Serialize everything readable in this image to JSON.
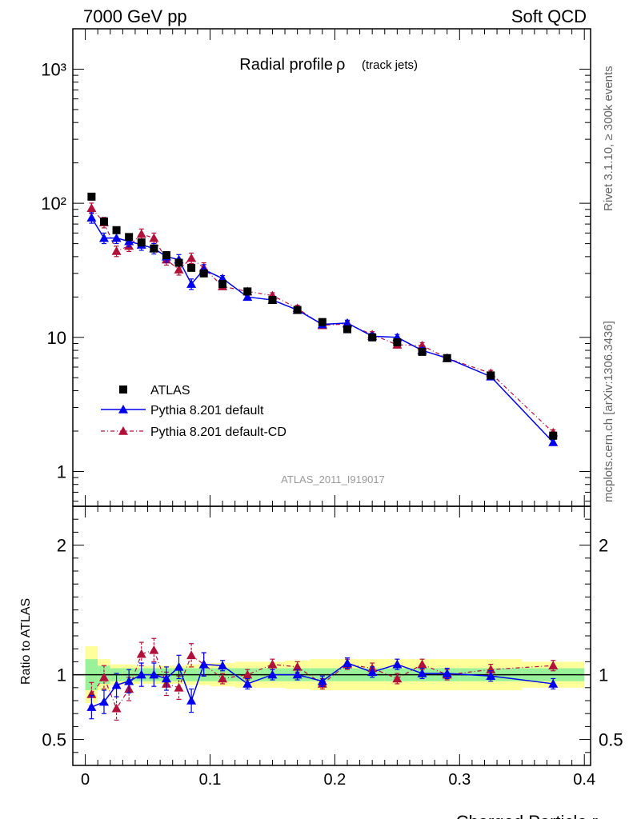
{
  "header": {
    "left": "7000 GeV pp",
    "right": "Soft QCD"
  },
  "side_text": {
    "rivet": "Rivet 3.1.10, ≥ 300k events",
    "mcplots": "mcplots.cern.ch [arXiv:1306.3436]"
  },
  "analysis_id": "ATLAS_2011_I919017",
  "colors": {
    "data": "#000000",
    "default": "#0000ee",
    "default_cd": "#b0103a",
    "band_green": "#99f299",
    "band_yellow": "#ffff99"
  },
  "chart_data": [
    {
      "type": "scatter",
      "title": "Radial profile ρ (track jets)",
      "title_main": "Radial profile",
      "title_symbol": "ρ",
      "title_sub": "(track jets)",
      "xlabel": "Charged Particle r",
      "ylabel": "",
      "yscale": "log",
      "xlim": [
        -0.01,
        0.405
      ],
      "ylim": [
        0.55,
        2000
      ],
      "y_tick_labels": [
        "1",
        "10",
        "10²",
        "10³"
      ],
      "legend": {
        "placement": "middle-left",
        "entries": [
          "ATLAS",
          "Pythia 8.201 default",
          "Pythia 8.201 default-CD"
        ]
      },
      "x": [
        0.005,
        0.015,
        0.025,
        0.035,
        0.045,
        0.055,
        0.065,
        0.075,
        0.085,
        0.095,
        0.11,
        0.13,
        0.15,
        0.17,
        0.19,
        0.21,
        0.23,
        0.25,
        0.27,
        0.29,
        0.325,
        0.375
      ],
      "series": [
        {
          "name": "ATLAS",
          "marker": "square",
          "values": [
            112,
            73,
            63,
            56,
            51,
            46,
            41,
            36,
            33,
            30,
            25,
            22,
            19,
            16,
            13,
            11.5,
            10,
            9.2,
            7.8,
            7.0,
            5.2,
            1.85
          ]
        },
        {
          "name": "Pythia 8.201 default",
          "marker": "triangle",
          "values": [
            78,
            55,
            55,
            52,
            49,
            46,
            40,
            38,
            25,
            32,
            27.5,
            20,
            19,
            16,
            12.5,
            12.8,
            10.2,
            10,
            8,
            7,
            5.1,
            1.65
          ]
        },
        {
          "name": "Pythia 8.201 default-CD",
          "marker": "triangle",
          "values": [
            92,
            72,
            44,
            48,
            59,
            55,
            38,
            32,
            39,
            33,
            24,
            22,
            20.5,
            16.5,
            12.3,
            12.6,
            10.5,
            8.8,
            8.7,
            7.0,
            5.4,
            1.95
          ]
        }
      ]
    },
    {
      "type": "scatter",
      "title": "",
      "xlabel": "Charged Particle r",
      "ylabel": "Ratio to ATLAS",
      "xlim": [
        -0.01,
        0.405
      ],
      "ylim": [
        0.3,
        2.3
      ],
      "y_tick_labels": [
        "0.5",
        "1",
        "2"
      ],
      "x_tick_labels": [
        "0",
        "0.1",
        "0.2",
        "0.3",
        "0.4"
      ],
      "x": [
        0.005,
        0.015,
        0.025,
        0.035,
        0.045,
        0.055,
        0.065,
        0.075,
        0.085,
        0.095,
        0.11,
        0.13,
        0.15,
        0.17,
        0.19,
        0.21,
        0.23,
        0.25,
        0.27,
        0.29,
        0.325,
        0.375
      ],
      "series": [
        {
          "name": "Pythia 8.201 default",
          "values": [
            0.75,
            0.79,
            0.92,
            0.95,
            1.0,
            1.0,
            0.97,
            1.06,
            0.8,
            1.08,
            1.07,
            0.93,
            1.0,
            1.0,
            0.95,
            1.09,
            1.02,
            1.08,
            1.01,
            1.01,
            0.99,
            0.93
          ]
        },
        {
          "name": "Pythia 8.201 default-CD",
          "values": [
            0.85,
            0.98,
            0.74,
            0.89,
            1.16,
            1.19,
            0.93,
            0.9,
            1.15,
            1.08,
            0.97,
            1.0,
            1.08,
            1.06,
            0.93,
            1.08,
            1.05,
            0.97,
            1.08,
            1.0,
            1.04,
            1.07
          ]
        }
      ],
      "band_edges": [
        0.0,
        0.01,
        0.02,
        0.03,
        0.04,
        0.05,
        0.06,
        0.07,
        0.08,
        0.09,
        0.1,
        0.12,
        0.14,
        0.16,
        0.18,
        0.2,
        0.22,
        0.24,
        0.26,
        0.28,
        0.3,
        0.35,
        0.4
      ],
      "band_green": [
        0.12,
        0.07,
        0.05,
        0.05,
        0.05,
        0.05,
        0.05,
        0.05,
        0.05,
        0.05,
        0.05,
        0.05,
        0.05,
        0.05,
        0.05,
        0.05,
        0.05,
        0.05,
        0.05,
        0.05,
        0.05,
        0.05
      ],
      "band_yellow": [
        0.22,
        0.12,
        0.08,
        0.08,
        0.07,
        0.07,
        0.07,
        0.07,
        0.08,
        0.08,
        0.09,
        0.1,
        0.1,
        0.11,
        0.12,
        0.12,
        0.12,
        0.12,
        0.12,
        0.12,
        0.12,
        0.1
      ]
    }
  ]
}
